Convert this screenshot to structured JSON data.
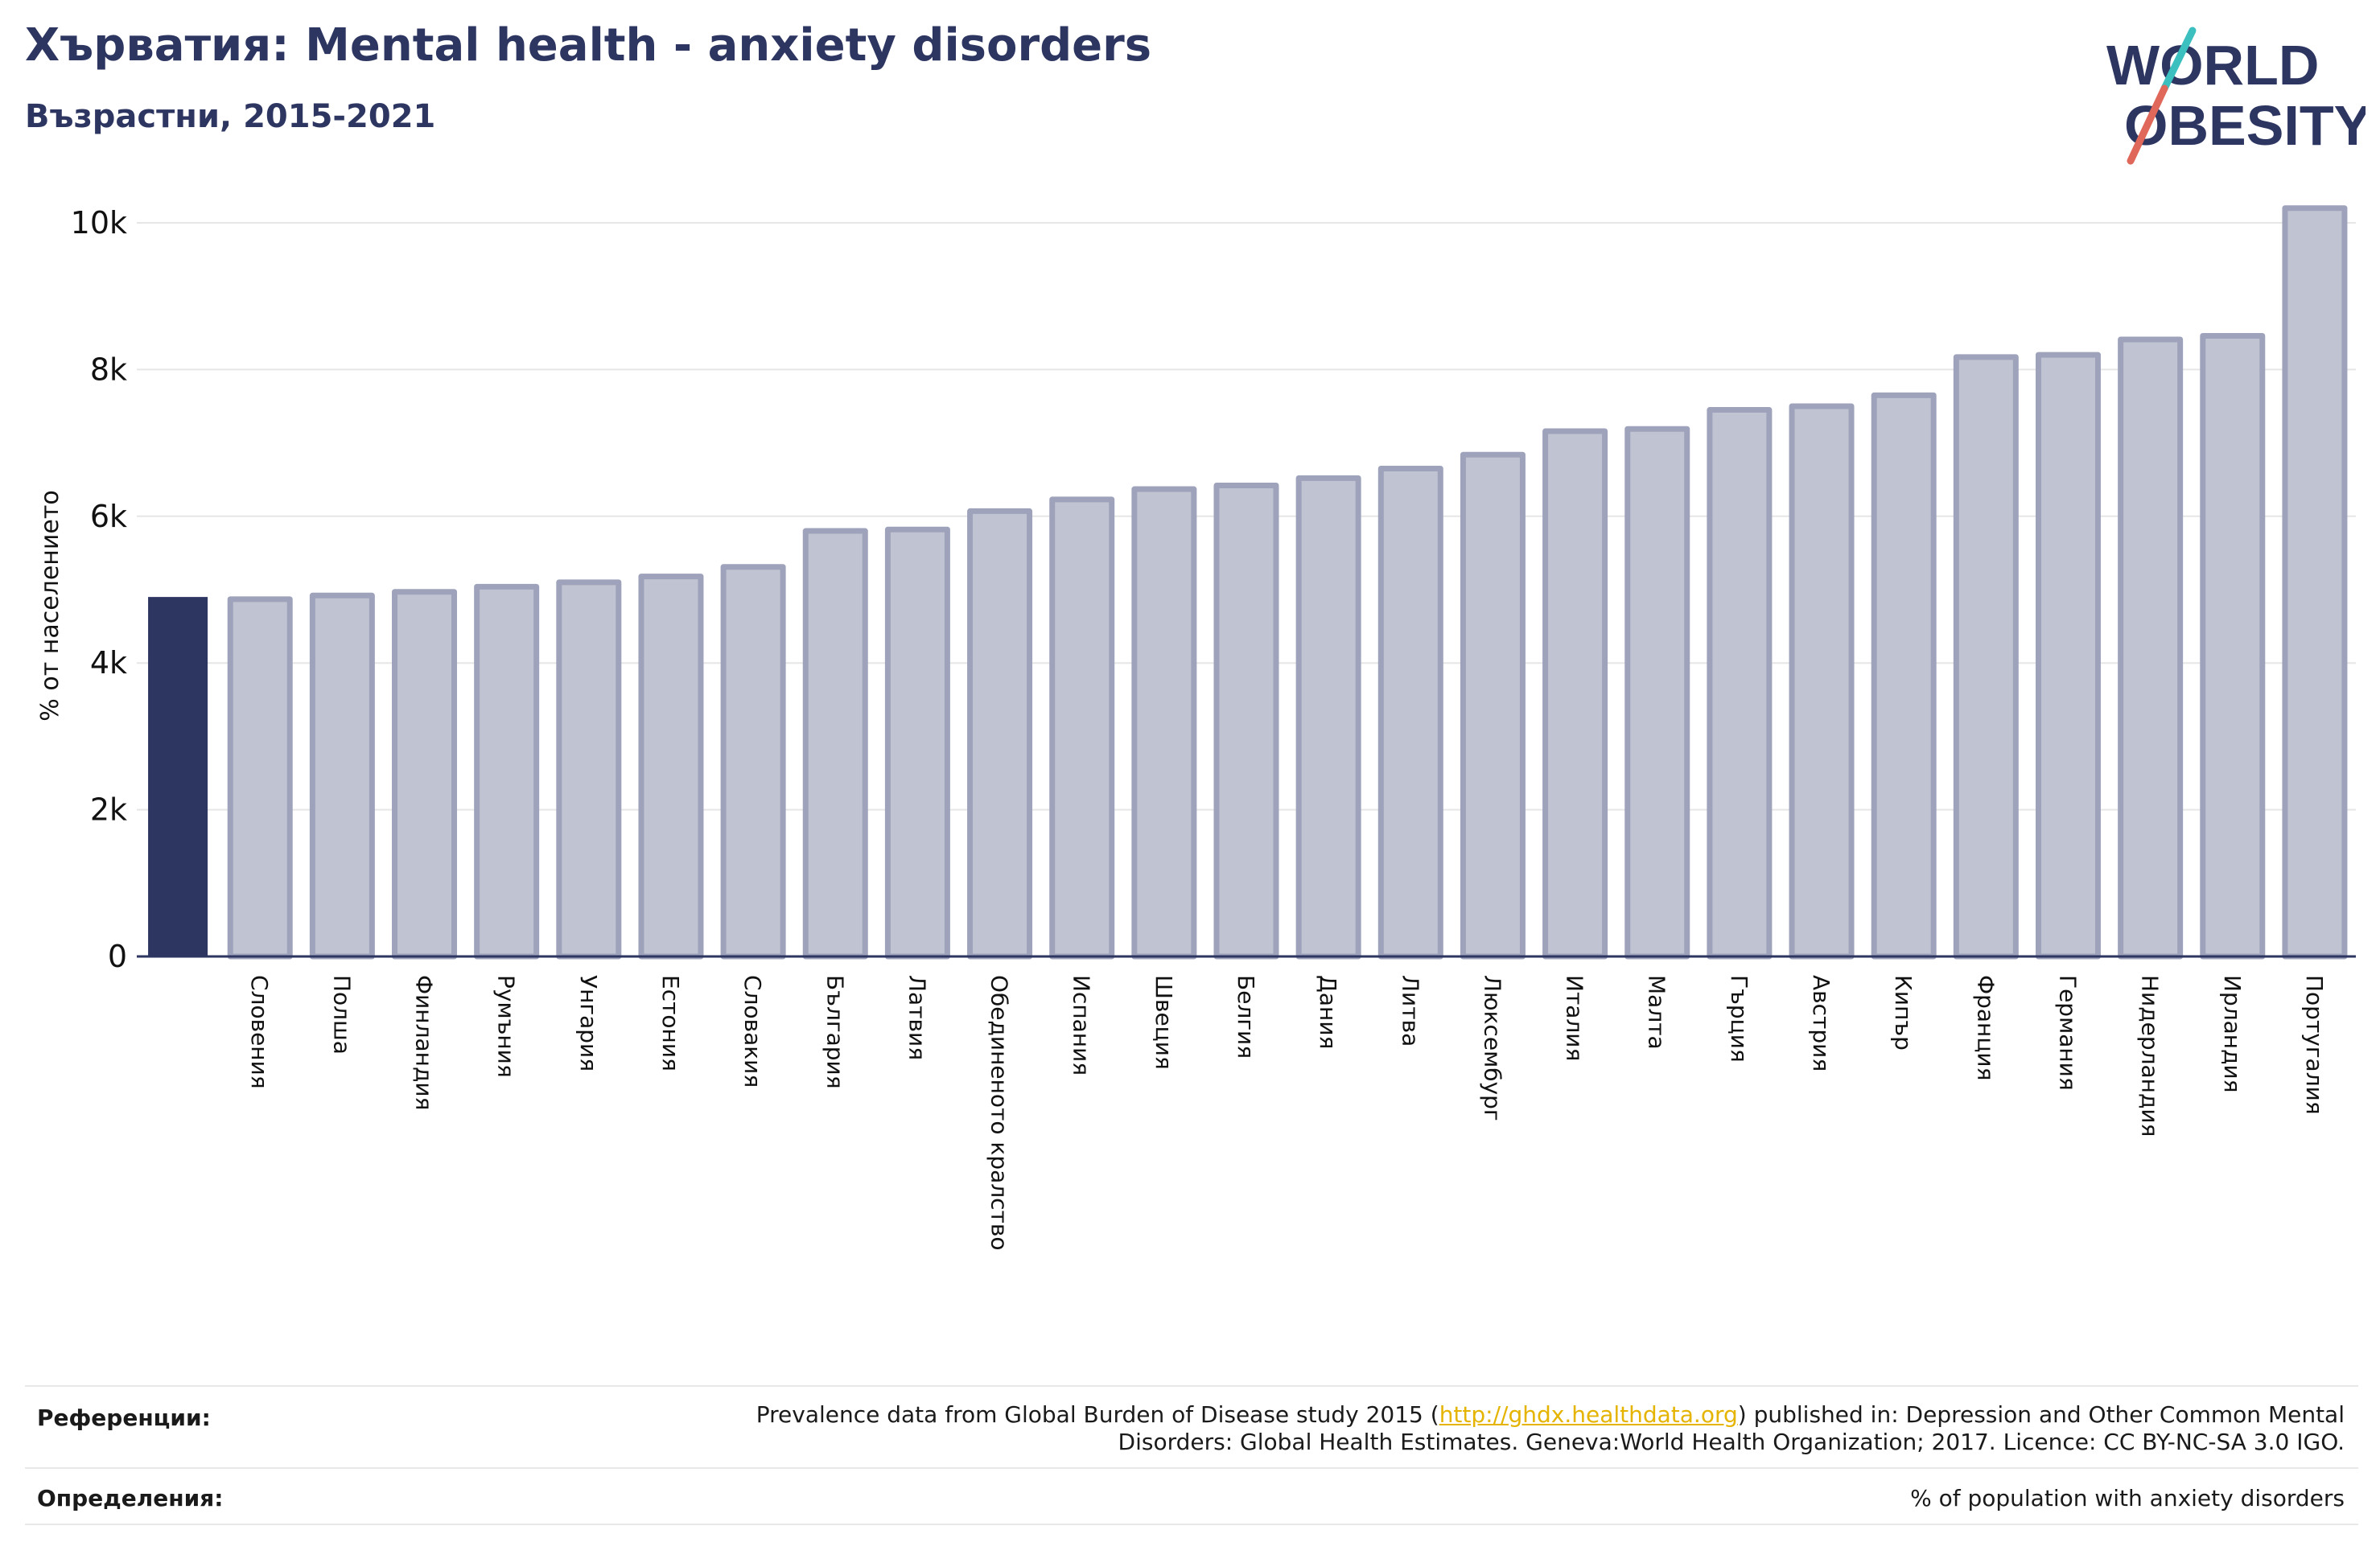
{
  "header": {
    "title": "Хърватия: Mental health - anxiety disorders",
    "subtitle": "Възрастни, 2015-2021"
  },
  "logo": {
    "line1": "WORLD",
    "line2": "OBESITY",
    "colors": {
      "navy": "#2d3561",
      "teal": "#3bbfbf",
      "coral": "#e0685a"
    }
  },
  "colors": {
    "highlight": "#2d3561",
    "bar_fill": "#c0c3d1",
    "bar_stroke": "#9ea3bb",
    "grid": "#e6e6e6",
    "axis": "#2d3561"
  },
  "chart_data": {
    "type": "bar",
    "ylabel": "% от населението",
    "ylim": [
      0,
      10000
    ],
    "yticks": [
      {
        "value": 0,
        "label": "0"
      },
      {
        "value": 2000,
        "label": "2k"
      },
      {
        "value": 4000,
        "label": "4k"
      },
      {
        "value": 6000,
        "label": "6k"
      },
      {
        "value": 8000,
        "label": "8k"
      },
      {
        "value": 10000,
        "label": "10k"
      }
    ],
    "grid": true,
    "highlight_index": 0,
    "categories": [
      "",
      "Словения",
      "Полша",
      "Финландия",
      "Румъния",
      "Унгария",
      "Естония",
      "Словакия",
      "България",
      "Латвия",
      "Обединеното кралство",
      "Испания",
      "Швеция",
      "Белгия",
      "Дания",
      "Литва",
      "Люксембург",
      "Италия",
      "Малта",
      "Гърция",
      "Австрия",
      "Кипър",
      "Франция",
      "Германия",
      "Нидерландия",
      "Ирландия",
      "Португалия"
    ],
    "values": [
      4900,
      4870,
      4920,
      4970,
      5040,
      5100,
      5180,
      5310,
      5800,
      5820,
      6070,
      6230,
      6370,
      6420,
      6520,
      6650,
      6840,
      7160,
      7190,
      7450,
      7500,
      7650,
      8170,
      8200,
      8410,
      8460,
      10200
    ]
  },
  "footer": {
    "references_label": "Референции:",
    "references_pre": "Prevalence data from Global Burden of Disease study 2015 (",
    "references_link": "http://ghdx.healthdata.org",
    "references_post": ") published in: Depression and Other Common Mental",
    "references_line2": "Disorders: Global Health Estimates. Geneva:World Health Organization; 2017. Licence: CC BY-NC-SA 3.0 IGO.",
    "definitions_label": "Определения:",
    "definitions_text": "% of population with anxiety disorders"
  }
}
